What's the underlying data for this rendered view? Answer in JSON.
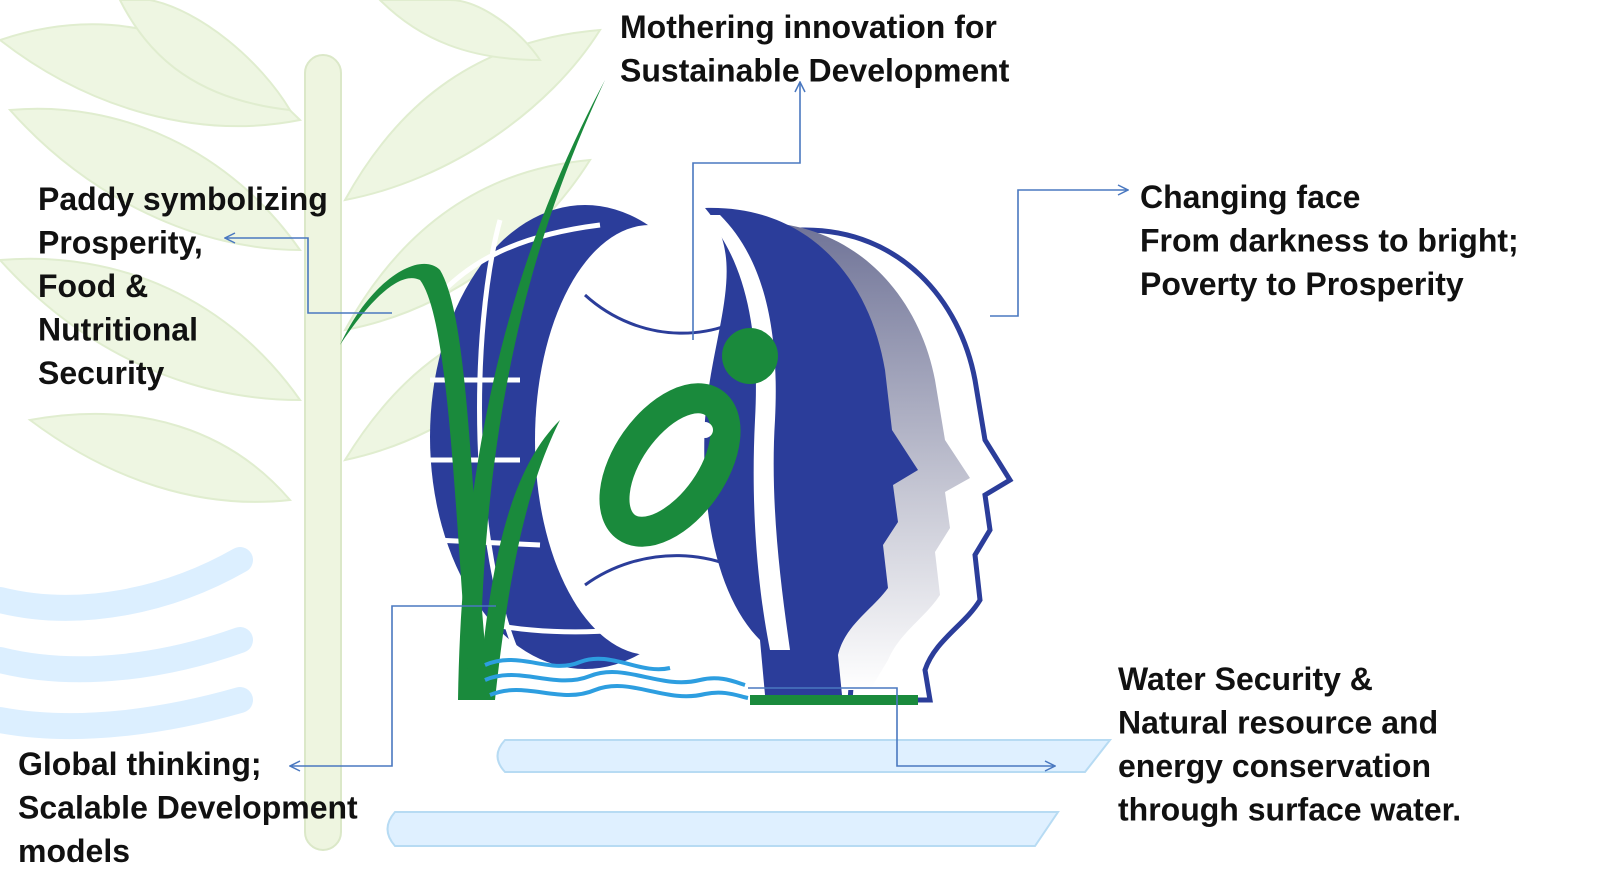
{
  "annotations": [
    {
      "lines": [
        "Mothering innovation for",
        "Sustainable Development"
      ]
    },
    {
      "lines": [
        "Paddy symbolizing",
        "Prosperity,",
        "Food &",
        "Nutritional",
        "Security"
      ]
    },
    {
      "lines": [
        "Changing face",
        "From darkness to bright;",
        "Poverty to Prosperity"
      ]
    },
    {
      "lines": [
        "Water Security &",
        "Natural resource and",
        "energy conservation",
        "through surface water."
      ]
    },
    {
      "lines": [
        "Global thinking;",
        "Scalable Development",
        "models"
      ]
    }
  ]
}
